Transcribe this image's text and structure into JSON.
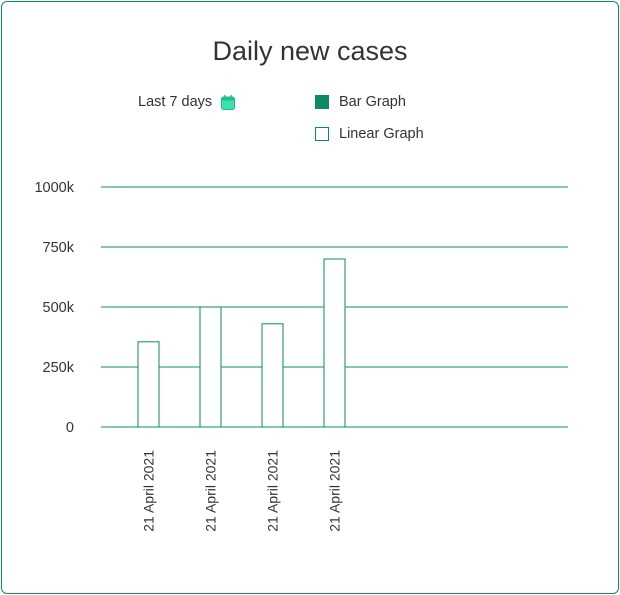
{
  "chart_data": {
    "type": "bar",
    "title": "Daily new cases",
    "categories": [
      "21 April 2021",
      "21 April 2021",
      "21 April 2021",
      "21 April 2021"
    ],
    "series": [
      {
        "name": "Bar Graph",
        "values": [
          355000,
          500000,
          430000,
          700000
        ]
      }
    ],
    "ylim": [
      0,
      1000000
    ],
    "yticks": [
      {
        "value": 0,
        "label": "0"
      },
      {
        "value": 250000,
        "label": "250k"
      },
      {
        "value": 500000,
        "label": "500k"
      },
      {
        "value": 750000,
        "label": "750k"
      },
      {
        "value": 1000000,
        "label": "1000k"
      }
    ],
    "grid": true,
    "legend_placement": "top-right",
    "colors": {
      "accent": "#0b8a64",
      "grid": "#118c6a",
      "bar_fill": "#ffffff",
      "icon": "#3ee0b0"
    }
  },
  "controls": {
    "period_label": "Last 7 days",
    "period_icon": "calendar-icon"
  },
  "legend": {
    "items": [
      {
        "label": "Bar Graph",
        "style": "filled"
      },
      {
        "label": "Linear Graph",
        "style": "hollow"
      }
    ]
  }
}
